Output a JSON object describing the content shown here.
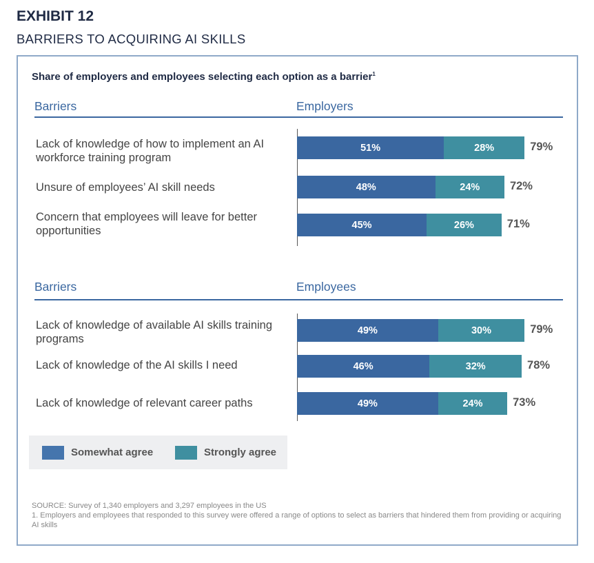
{
  "exhibit": "EXHIBIT 12",
  "title": "BARRIERS TO ACQUIRING AI SKILLS",
  "subtitle": "Share of employers and employees selecting each option as a barrier",
  "subtitle_footnote": "1",
  "colors": {
    "somewhat": "#3a67a0",
    "strongly": "#3f8fa0"
  },
  "chart_data": [
    {
      "type": "bar",
      "stacked": true,
      "orientation": "horizontal",
      "column_headers": {
        "label": "Barriers",
        "value": "Employers"
      },
      "categories": [
        "Lack of knowledge of how to implement an AI workforce training program",
        "Unsure of employees’ AI skill needs",
        "Concern that employees will leave for better opportunities"
      ],
      "series": [
        {
          "name": "Somewhat agree",
          "values": [
            51,
            48,
            45
          ]
        },
        {
          "name": "Strongly agree",
          "values": [
            28,
            24,
            26
          ]
        }
      ],
      "totals": [
        79,
        72,
        71
      ]
    },
    {
      "type": "bar",
      "stacked": true,
      "orientation": "horizontal",
      "column_headers": {
        "label": "Barriers",
        "value": "Employees"
      },
      "categories": [
        "Lack of knowledge of available AI skills training programs",
        "Lack of knowledge of the AI skills I need",
        "Lack of knowledge of relevant career paths"
      ],
      "series": [
        {
          "name": "Somewhat agree",
          "values": [
            49,
            46,
            49
          ]
        },
        {
          "name": "Strongly agree",
          "values": [
            30,
            32,
            24
          ]
        }
      ],
      "totals": [
        79,
        78,
        73
      ]
    }
  ],
  "legend": [
    "Somewhat agree",
    "Strongly agree"
  ],
  "source": "SOURCE: Survey of 1,340 employers and 3,297 employees in the US",
  "footnote": "1. Employers and employees that responded to this survey were offered a range of options to select as barriers that hindered them from providing or acquiring AI skills"
}
